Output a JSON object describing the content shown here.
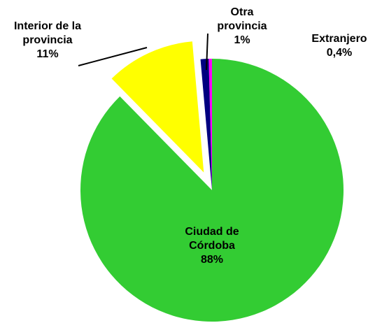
{
  "chart_data": {
    "type": "pie",
    "categories": [
      "Ciudad de Córdoba",
      "Interior de la provincia",
      "Otra provincia",
      "Extranjero"
    ],
    "values": [
      88,
      11,
      1,
      0.4
    ],
    "value_labels": [
      "88%",
      "11%",
      "1%",
      "0,4%"
    ],
    "colors": [
      "#33cc33",
      "#ffff00",
      "#000080",
      "#ff00ff"
    ],
    "exploded": [
      false,
      true,
      false,
      false
    ]
  }
}
